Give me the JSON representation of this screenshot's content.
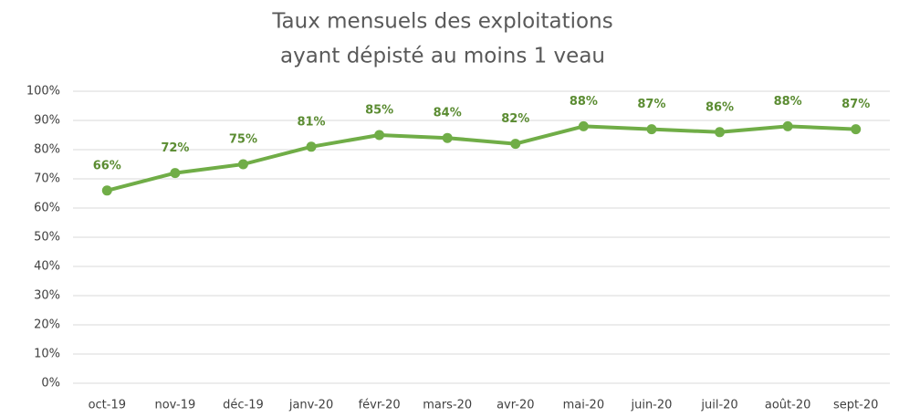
{
  "chart_data": {
    "type": "line",
    "title": [
      "Taux mensuels des exploitations",
      "ayant dépisté au moins 1 veau"
    ],
    "categories": [
      "oct-19",
      "nov-19",
      "déc-19",
      "janv-20",
      "févr-20",
      "mars-20",
      "avr-20",
      "mai-20",
      "juin-20",
      "juil-20",
      "août-20",
      "sept-20"
    ],
    "series": [
      {
        "name": null,
        "color": "#70ad47",
        "values": [
          66,
          72,
          75,
          81,
          85,
          84,
          82,
          88,
          87,
          86,
          88,
          87
        ],
        "value_labels": [
          "66%",
          "72%",
          "75%",
          "81%",
          "85%",
          "84%",
          "82%",
          "88%",
          "87%",
          "86%",
          "88%",
          "87%"
        ]
      }
    ],
    "label_color": "#5b8c32",
    "ylim": [
      0,
      100
    ],
    "yticks": [
      {
        "value": 0,
        "label": "0%"
      },
      {
        "value": 10,
        "label": "10%"
      },
      {
        "value": 20,
        "label": "20%"
      },
      {
        "value": 30,
        "label": "30%"
      },
      {
        "value": 40,
        "label": "40%"
      },
      {
        "value": 50,
        "label": "50%"
      },
      {
        "value": 60,
        "label": "60%"
      },
      {
        "value": 70,
        "label": "70%"
      },
      {
        "value": 80,
        "label": "80%"
      },
      {
        "value": 90,
        "label": "90%"
      },
      {
        "value": 100,
        "label": "100%"
      }
    ],
    "grid": true
  }
}
